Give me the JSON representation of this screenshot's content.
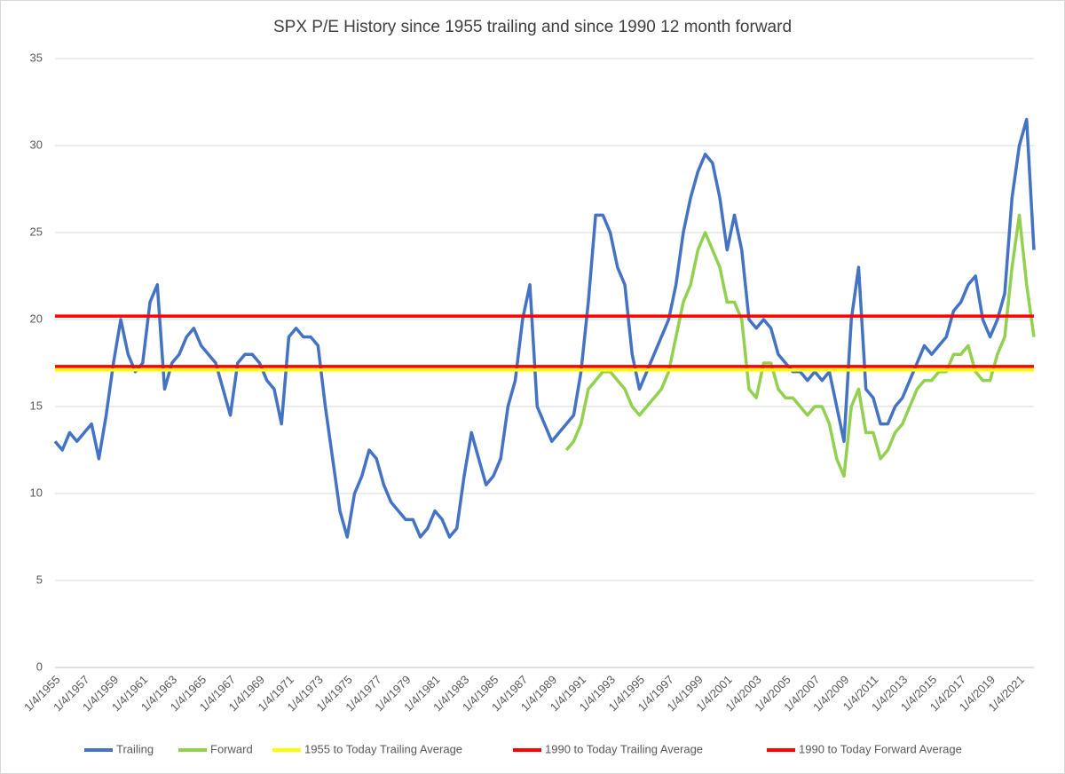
{
  "chart_data": {
    "type": "line",
    "title": "SPX P/E History since 1955 trailing and since 1990 12 month forward",
    "categories": [
      "1/4/1955",
      null,
      null,
      null,
      "1/4/1957",
      null,
      null,
      null,
      "1/4/1959",
      null,
      null,
      null,
      "1/4/1961",
      null,
      null,
      null,
      "1/4/1963",
      null,
      null,
      null,
      "1/4/1965",
      null,
      null,
      null,
      "1/4/1967",
      null,
      null,
      null,
      "1/4/1969",
      null,
      null,
      null,
      "1/4/1971",
      null,
      null,
      null,
      "1/4/1973",
      null,
      null,
      null,
      "1/4/1975",
      null,
      null,
      null,
      "1/4/1977",
      null,
      null,
      null,
      "1/4/1979",
      null,
      null,
      null,
      "1/4/1981",
      null,
      null,
      null,
      "1/4/1983",
      null,
      null,
      null,
      "1/4/1985",
      null,
      null,
      null,
      "1/4/1987",
      null,
      null,
      null,
      "1/4/1989",
      null,
      null,
      null,
      "1/4/1991",
      null,
      null,
      null,
      "1/4/1993",
      null,
      null,
      null,
      "1/4/1995",
      null,
      null,
      null,
      "1/4/1997",
      null,
      null,
      null,
      "1/4/1999",
      null,
      null,
      null,
      "1/4/2001",
      null,
      null,
      null,
      "1/4/2003",
      null,
      null,
      null,
      "1/4/2005",
      null,
      null,
      null,
      "1/4/2007",
      null,
      null,
      null,
      "1/4/2009",
      null,
      null,
      null,
      "1/4/2011",
      null,
      null,
      null,
      "1/4/2013",
      null,
      null,
      null,
      "1/4/2015",
      null,
      null,
      null,
      "1/4/2017",
      null,
      null,
      null,
      "1/4/2019",
      null,
      null,
      null,
      "1/4/2021",
      null,
      null
    ],
    "series": [
      {
        "name": "Trailing",
        "color": "#4472c4",
        "values": [
          13,
          12.5,
          13.5,
          13,
          13.5,
          14,
          12,
          14.5,
          17.5,
          20,
          18,
          17,
          17.5,
          21,
          22,
          16,
          17.5,
          18,
          19,
          19.5,
          18.5,
          18,
          17.5,
          16,
          14.5,
          17.5,
          18,
          18,
          17.5,
          16.5,
          16,
          14,
          19,
          19.5,
          19,
          19,
          18.5,
          15,
          12,
          9,
          7.5,
          10,
          11,
          12.5,
          12,
          10.5,
          9.5,
          9,
          8.5,
          8.5,
          7.5,
          8,
          9,
          8.5,
          7.5,
          8,
          11,
          13.5,
          12,
          10.5,
          11,
          12,
          15,
          16.5,
          20,
          22,
          15,
          14,
          13,
          13.5,
          14,
          14.5,
          17,
          21,
          26,
          26,
          25,
          23,
          22,
          18,
          16,
          17,
          18,
          19,
          20,
          22,
          25,
          27,
          28.5,
          29.5,
          29,
          27,
          24,
          26,
          24,
          20,
          19.5,
          20,
          19.5,
          18,
          17.5,
          17,
          17,
          16.5,
          17,
          16.5,
          17,
          15,
          13,
          20,
          23,
          16,
          15.5,
          14,
          14,
          15,
          15.5,
          16.5,
          17.5,
          18.5,
          18,
          18.5,
          19,
          20.5,
          21,
          22,
          22.5,
          20,
          19,
          20,
          21.5,
          27,
          30,
          31.5,
          24
        ]
      },
      {
        "name": "Forward",
        "color": "#92d050",
        "values": [
          null,
          null,
          null,
          null,
          null,
          null,
          null,
          null,
          null,
          null,
          null,
          null,
          null,
          null,
          null,
          null,
          null,
          null,
          null,
          null,
          null,
          null,
          null,
          null,
          null,
          null,
          null,
          null,
          null,
          null,
          null,
          null,
          null,
          null,
          null,
          null,
          null,
          null,
          null,
          null,
          null,
          null,
          null,
          null,
          null,
          null,
          null,
          null,
          null,
          null,
          null,
          null,
          null,
          null,
          null,
          null,
          null,
          null,
          null,
          null,
          null,
          null,
          null,
          null,
          null,
          null,
          null,
          null,
          null,
          null,
          12.5,
          13,
          14,
          16,
          16.5,
          17,
          17,
          16.5,
          16,
          15,
          14.5,
          15,
          15.5,
          16,
          17,
          19,
          21,
          22,
          24,
          25,
          24,
          23,
          21,
          21,
          20,
          16,
          15.5,
          17.5,
          17.5,
          16,
          15.5,
          15.5,
          15,
          14.5,
          15,
          15,
          14,
          12,
          11,
          15,
          16,
          13.5,
          13.5,
          12,
          12.5,
          13.5,
          14,
          15,
          16,
          16.5,
          16.5,
          17,
          17,
          18,
          18,
          18.5,
          17,
          16.5,
          16.5,
          18,
          19,
          23,
          26,
          22,
          19
        ]
      }
    ],
    "reference_lines": [
      {
        "name": "1955 to Today Trailing Average",
        "color": "#ffff00",
        "value": 17.1
      },
      {
        "name": "1990 to Today Trailing Average",
        "color": "#ff0000",
        "value": 20.2
      },
      {
        "name": "1990 to Today Forward Average",
        "color": "#ff0000",
        "value": 17.3
      }
    ],
    "ylim": [
      0,
      35
    ],
    "yticks": [
      0,
      5,
      10,
      15,
      20,
      25,
      30,
      35
    ],
    "grid": true,
    "legend": "bottom"
  }
}
